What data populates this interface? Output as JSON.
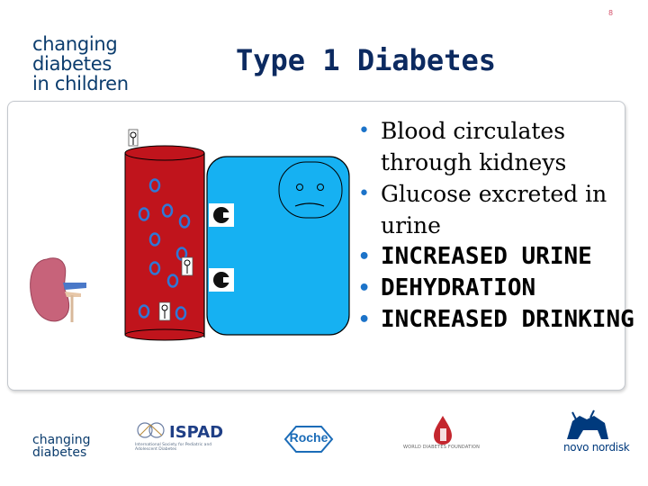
{
  "page_number": "8",
  "brand": {
    "line1": "changing",
    "line2": "diabetes",
    "line3": "in children"
  },
  "title": "Type 1 Diabetes",
  "bullets": [
    {
      "text": "Blood circulates through kidneys",
      "emphasis": false
    },
    {
      "text": "Glucose excreted in urine",
      "emphasis": false
    },
    {
      "text": "INCREASED URINE",
      "emphasis": true
    },
    {
      "text": "DEHYDRATION",
      "emphasis": true
    },
    {
      "text": "INCREASED DRINKING",
      "emphasis": true
    }
  ],
  "logos": {
    "changing_diabetes": {
      "line1": "changing",
      "line2": "diabetes"
    },
    "ispad": {
      "name": "ISPAD",
      "subtitle": "International Society for Pediatric and Adolescent Diabetes"
    },
    "roche": {
      "name": "Roche"
    },
    "wdf": {
      "name": "WORLD DIABETES FOUNDATION"
    },
    "novo": {
      "name": "novo nordisk"
    }
  },
  "colors": {
    "title": "#0c2a60",
    "brand": "#0c3d6e",
    "blood_vessel": "#c0141c",
    "cell_blue": "#16b1f2",
    "bullet": "#1c73c9",
    "kidney": "#c7637a"
  }
}
